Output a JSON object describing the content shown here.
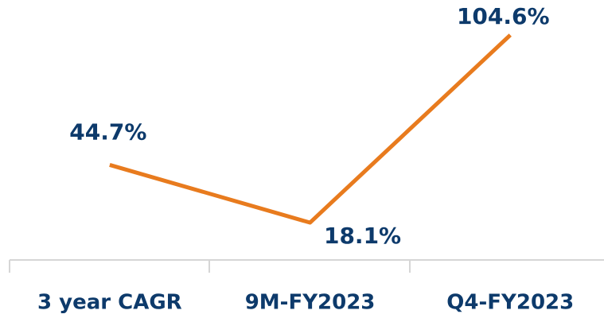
{
  "chart_data": {
    "type": "line",
    "categories": [
      "3 year CAGR",
      "9M-FY2023",
      "Q4-FY2023"
    ],
    "values": [
      44.7,
      18.1,
      104.6
    ],
    "value_labels": [
      "44.7%",
      "18.1%",
      "104.6%"
    ],
    "color": "#e87b1e"
  }
}
